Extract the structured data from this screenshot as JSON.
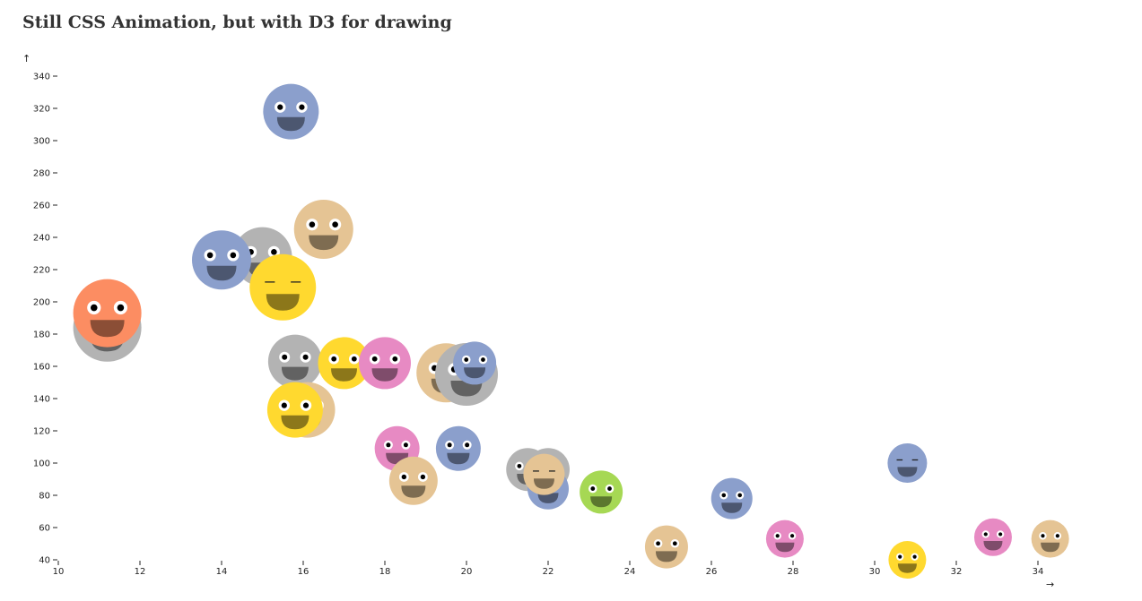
{
  "page": {
    "title": "Still CSS Animation, but with D3 for drawing"
  },
  "chart_data": {
    "type": "scatter",
    "title": "Still CSS Animation, but with D3 for drawing",
    "xlabel": "→",
    "ylabel": "↑",
    "xlim": [
      10,
      35
    ],
    "ylim": [
      40,
      345
    ],
    "grid": false,
    "legend": "none",
    "x_ticks": [
      "10",
      "12",
      "14",
      "16",
      "18",
      "20",
      "22",
      "24",
      "26",
      "28",
      "30",
      "32",
      "34"
    ],
    "y_ticks": [
      "40",
      "60",
      "80",
      "100",
      "120",
      "140",
      "160",
      "180",
      "200",
      "220",
      "240",
      "260",
      "280",
      "300",
      "320",
      "340"
    ],
    "colors": {
      "blue": "#8b9fcc",
      "gray": "#b3b3b3",
      "tan": "#e5c494",
      "yellow": "#ffd92f",
      "pink": "#e78ac3",
      "orange": "#fc8d62",
      "green": "#a6d854"
    },
    "points": [
      {
        "x": 11.2,
        "y": 184,
        "r": 38,
        "color": "gray",
        "eyes": "open"
      },
      {
        "x": 11.2,
        "y": 193,
        "r": 38,
        "color": "orange",
        "eyes": "open"
      },
      {
        "x": 15.7,
        "y": 318,
        "r": 31,
        "color": "blue",
        "eyes": "open"
      },
      {
        "x": 16.5,
        "y": 245,
        "r": 33,
        "color": "tan",
        "eyes": "open"
      },
      {
        "x": 15.0,
        "y": 228,
        "r": 33,
        "color": "gray",
        "eyes": "open"
      },
      {
        "x": 14.0,
        "y": 226,
        "r": 33,
        "color": "blue",
        "eyes": "open"
      },
      {
        "x": 15.5,
        "y": 209,
        "r": 37,
        "color": "yellow",
        "eyes": "closed"
      },
      {
        "x": 15.8,
        "y": 163,
        "r": 30,
        "color": "gray",
        "eyes": "open"
      },
      {
        "x": 17.0,
        "y": 162,
        "r": 29,
        "color": "yellow",
        "eyes": "open"
      },
      {
        "x": 18.0,
        "y": 162,
        "r": 29,
        "color": "pink",
        "eyes": "open"
      },
      {
        "x": 16.1,
        "y": 133,
        "r": 31,
        "color": "tan",
        "eyes": "open"
      },
      {
        "x": 15.8,
        "y": 133,
        "r": 31,
        "color": "yellow",
        "eyes": "open"
      },
      {
        "x": 19.5,
        "y": 156,
        "r": 33,
        "color": "tan",
        "eyes": "open"
      },
      {
        "x": 20.0,
        "y": 155,
        "r": 35,
        "color": "gray",
        "eyes": "open"
      },
      {
        "x": 20.2,
        "y": 162,
        "r": 24,
        "color": "blue",
        "eyes": "open"
      },
      {
        "x": 18.3,
        "y": 109,
        "r": 25,
        "color": "pink",
        "eyes": "open"
      },
      {
        "x": 19.8,
        "y": 109,
        "r": 25,
        "color": "blue",
        "eyes": "open"
      },
      {
        "x": 18.7,
        "y": 89,
        "r": 27,
        "color": "tan",
        "eyes": "open"
      },
      {
        "x": 21.5,
        "y": 96,
        "r": 24,
        "color": "gray",
        "eyes": "open"
      },
      {
        "x": 22.0,
        "y": 96,
        "r": 24,
        "color": "gray",
        "eyes": "open"
      },
      {
        "x": 22.0,
        "y": 84,
        "r": 23,
        "color": "blue",
        "eyes": "open"
      },
      {
        "x": 21.9,
        "y": 93,
        "r": 23,
        "color": "tan",
        "eyes": "closed"
      },
      {
        "x": 23.3,
        "y": 82,
        "r": 24,
        "color": "green",
        "eyes": "open"
      },
      {
        "x": 24.9,
        "y": 48,
        "r": 24,
        "color": "tan",
        "eyes": "open"
      },
      {
        "x": 26.5,
        "y": 78,
        "r": 23,
        "color": "blue",
        "eyes": "open"
      },
      {
        "x": 27.8,
        "y": 53,
        "r": 21,
        "color": "pink",
        "eyes": "open"
      },
      {
        "x": 30.8,
        "y": 100,
        "r": 22,
        "color": "blue",
        "eyes": "closed"
      },
      {
        "x": 30.8,
        "y": 40,
        "r": 21,
        "color": "yellow",
        "eyes": "open"
      },
      {
        "x": 32.9,
        "y": 54,
        "r": 21,
        "color": "pink",
        "eyes": "open"
      },
      {
        "x": 34.3,
        "y": 53,
        "r": 21,
        "color": "tan",
        "eyes": "open"
      }
    ]
  }
}
